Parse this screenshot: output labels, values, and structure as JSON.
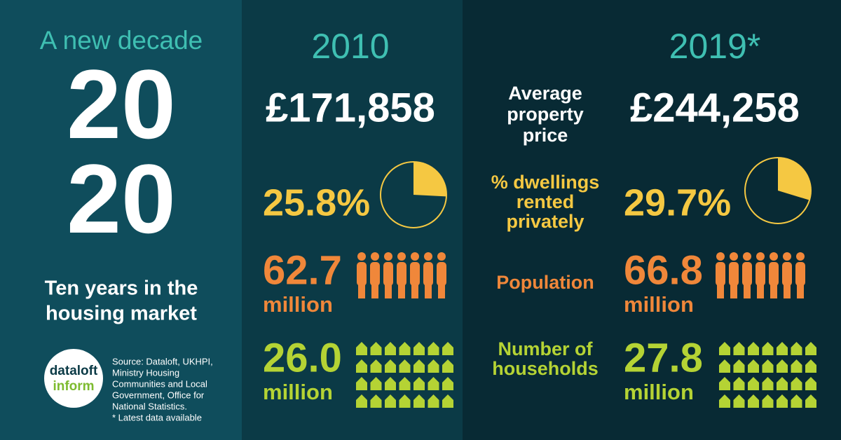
{
  "left": {
    "kicker": "A new decade",
    "year_top": "20",
    "year_bottom": "20",
    "subtitle_lines": [
      "Ten years in the",
      "housing market"
    ],
    "logo": [
      "dataloft",
      "inform"
    ],
    "source_lines": [
      "Source: Dataloft, UKHPI,",
      "Ministry Housing",
      "Communities and Local",
      "Government, Office for",
      "National Statistics.",
      "* Latest data available"
    ]
  },
  "columns": [
    {
      "heading": "2010"
    },
    {
      "heading": "2019*"
    }
  ],
  "metrics": [
    {
      "label_lines": [
        "Average",
        "property",
        "price"
      ],
      "values": [
        "£171,858",
        "£244,258"
      ]
    },
    {
      "label_lines": [
        "% dwellings",
        "rented",
        "privately"
      ],
      "values": [
        {
          "value": 25.8,
          "label": "25.8%"
        },
        {
          "value": 29.7,
          "label": "29.7%"
        }
      ]
    },
    {
      "label_lines": [
        "Population"
      ],
      "values": [
        {
          "number": "62.7",
          "unit": "million"
        },
        {
          "number": "66.8",
          "unit": "million"
        }
      ]
    },
    {
      "label_lines": [
        "Number of",
        "households"
      ],
      "values": [
        {
          "number": "26.0",
          "unit": "million"
        },
        {
          "number": "27.8",
          "unit": "million"
        }
      ]
    }
  ]
}
